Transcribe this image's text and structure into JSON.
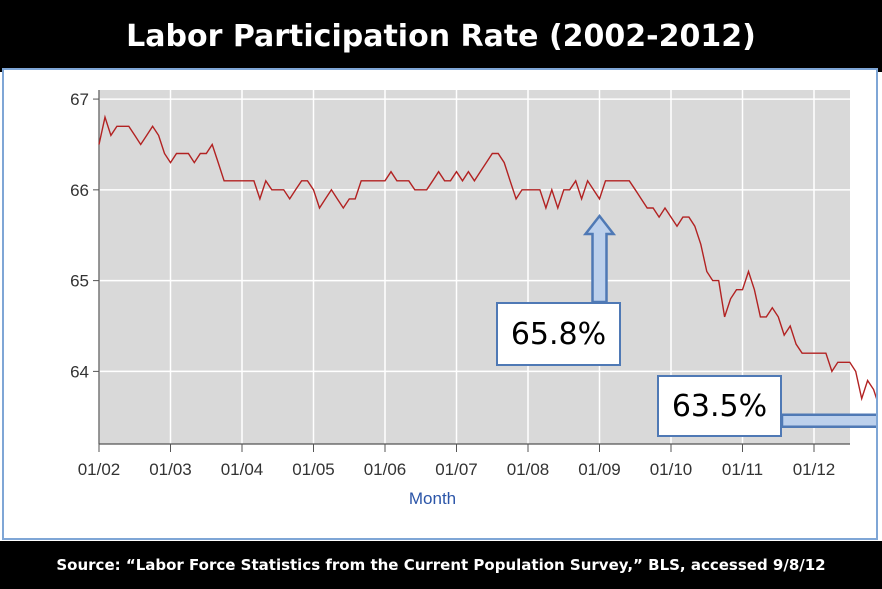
{
  "title": "Labor Participation Rate (2002-2012)",
  "source": "Source: “Labor Force Statistics from the Current Population Survey,” BLS, accessed 9/8/12",
  "colors": {
    "line": "#b22222",
    "plot_bg": "#d9d9d9",
    "callout_border": "#4f79b5",
    "arrow_fill": "#bcd0ec"
  },
  "callouts": [
    {
      "label": "65.8%",
      "points_to": {
        "x": "01/09",
        "y": 65.8
      },
      "arrow": "up"
    },
    {
      "label": "63.5%",
      "points_to": {
        "x": "08/12",
        "y": 63.5
      },
      "arrow": "right"
    }
  ],
  "chart_data": {
    "type": "line",
    "title": "Labor Participation Rate (2002-2012)",
    "xlabel": "Month",
    "ylabel": "",
    "x_start": "01/02",
    "x_ticks": [
      "01/02",
      "01/03",
      "01/04",
      "01/05",
      "01/06",
      "01/07",
      "01/08",
      "01/09",
      "01/10",
      "01/11",
      "01/12"
    ],
    "y_ticks": [
      64,
      65,
      66,
      67
    ],
    "ylim": [
      63.2,
      67.1
    ],
    "grid": true,
    "series": [
      {
        "values": [
          66.5,
          66.8,
          66.6,
          66.7,
          66.7,
          66.7,
          66.6,
          66.5,
          66.6,
          66.7,
          66.6,
          66.4,
          66.3,
          66.4,
          66.4,
          66.4,
          66.3,
          66.4,
          66.4,
          66.5,
          66.3,
          66.1,
          66.1,
          66.1,
          66.1,
          66.1,
          66.1,
          65.9,
          66.1,
          66.0,
          66.0,
          66.0,
          65.9,
          66.0,
          66.1,
          66.1,
          66.0,
          65.8,
          65.9,
          66.0,
          65.9,
          65.8,
          65.9,
          65.9,
          66.1,
          66.1,
          66.1,
          66.1,
          66.1,
          66.2,
          66.1,
          66.1,
          66.1,
          66.0,
          66.0,
          66.0,
          66.1,
          66.2,
          66.1,
          66.1,
          66.2,
          66.1,
          66.2,
          66.1,
          66.2,
          66.3,
          66.4,
          66.4,
          66.3,
          66.1,
          65.9,
          66.0,
          66.0,
          66.0,
          66.0,
          65.8,
          66.0,
          65.8,
          66.0,
          66.0,
          66.1,
          65.9,
          66.1,
          66.0,
          65.9,
          66.1,
          66.1,
          66.1,
          66.1,
          66.1,
          66.0,
          65.9,
          65.8,
          65.8,
          65.7,
          65.8,
          65.7,
          65.6,
          65.7,
          65.7,
          65.6,
          65.4,
          65.1,
          65.0,
          65.0,
          64.6,
          64.8,
          64.9,
          64.9,
          65.1,
          64.9,
          64.6,
          64.6,
          64.7,
          64.6,
          64.4,
          64.5,
          64.3,
          64.2,
          64.2,
          64.2,
          64.2,
          64.2,
          64.0,
          64.1,
          64.1,
          64.1,
          64.0,
          63.7,
          63.9,
          63.8,
          63.6,
          63.8,
          63.8,
          63.5
        ]
      }
    ]
  }
}
